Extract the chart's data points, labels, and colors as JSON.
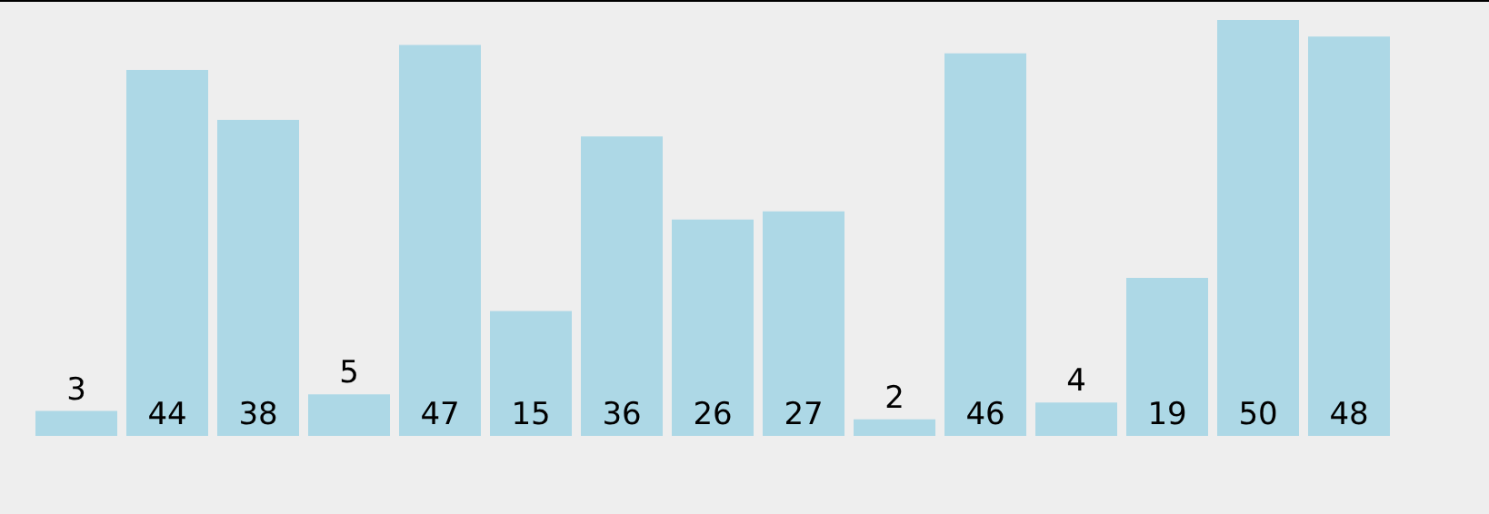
{
  "chart_data": {
    "type": "bar",
    "categories": [
      null,
      null,
      null,
      null,
      null,
      null,
      null,
      null,
      null,
      null,
      null,
      null,
      null,
      null,
      null
    ],
    "values": [
      3,
      44,
      38,
      5,
      47,
      15,
      36,
      26,
      27,
      2,
      46,
      4,
      19,
      50,
      48
    ],
    "color": "#add8e6",
    "data_labels": true
  }
}
